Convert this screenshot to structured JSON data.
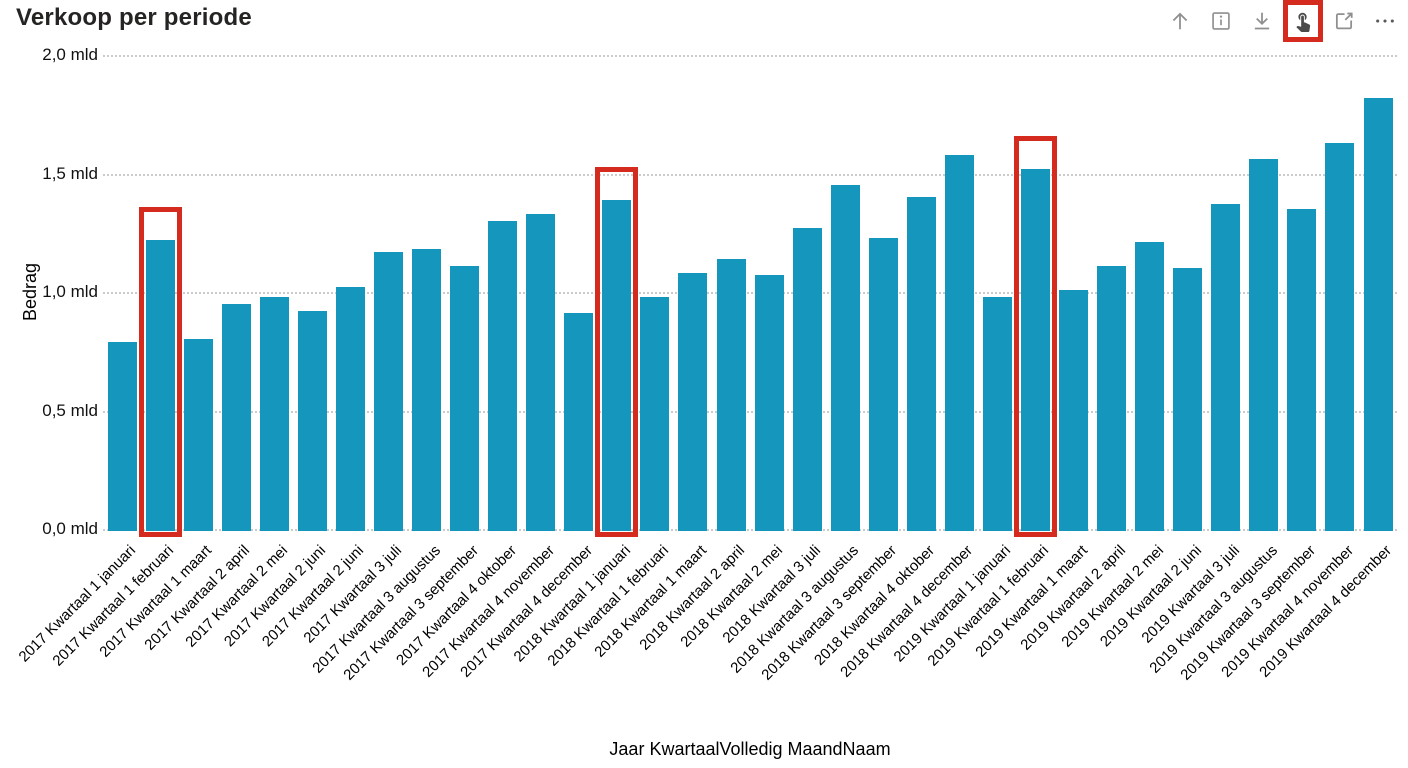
{
  "title": "Verkoop per periode",
  "toolbar": {
    "icons": [
      {
        "name": "drill-up"
      },
      {
        "name": "info"
      },
      {
        "name": "expand-next-level"
      },
      {
        "name": "drill-mode-toggle",
        "highlighted": true
      },
      {
        "name": "focus-mode"
      },
      {
        "name": "more-options"
      }
    ],
    "highlight_color": "#d52b1e"
  },
  "chart_data": {
    "type": "bar",
    "title": "Verkoop per periode",
    "xlabel": "Jaar KwartaalVolledig MaandNaam",
    "ylabel": "Bedrag",
    "ylim": [
      0,
      2.0
    ],
    "y_ticks": [
      {
        "value": 0.0,
        "label": "0,0 mld"
      },
      {
        "value": 0.5,
        "label": "0,5 mld"
      },
      {
        "value": 1.0,
        "label": "1,0 mld"
      },
      {
        "value": 1.5,
        "label": "1,5 mld"
      },
      {
        "value": 2.0,
        "label": "2,0 mld"
      }
    ],
    "grid": "dotted",
    "bar_color": "#1496bd",
    "annotation_color": "#d52b1e",
    "categories": [
      "2017 Kwartaal 1 januari",
      "2017 Kwartaal 1 februari",
      "2017 Kwartaal 1 maart",
      "2017 Kwartaal 2 april",
      "2017 Kwartaal 2 mei",
      "2017 Kwartaal 2 juni",
      "2017 Kwartaal 2 juni",
      "2017 Kwartaal 3 juli",
      "2017 Kwartaal 3 augustus",
      "2017 Kwartaal 3 september",
      "2017 Kwartaal 4 oktober",
      "2017 Kwartaal 4 november",
      "2017 Kwartaal 4 december",
      "2018 Kwartaal 1 januari",
      "2018 Kwartaal 1 februari",
      "2018 Kwartaal 1 maart",
      "2018 Kwartaal 2 april",
      "2018 Kwartaal 2 mei",
      "2018 Kwartaal 3 juli",
      "2018 Kwartaal 3 augustus",
      "2018 Kwartaal 3 september",
      "2018 Kwartaal 4 oktober",
      "2018 Kwartaal 4 december",
      "2019 Kwartaal 1 januari",
      "2019 Kwartaal 1 februari",
      "2019 Kwartaal 1 maart",
      "2019 Kwartaal 2 april",
      "2019 Kwartaal 2 mei",
      "2019 Kwartaal 2 juni",
      "2019 Kwartaal 3 juli",
      "2019 Kwartaal 3 augustus",
      "2019 Kwartaal 3 september",
      "2019 Kwartaal 4 november",
      "2019 Kwartaal 4 december"
    ],
    "values": [
      0.79,
      1.22,
      0.8,
      0.95,
      0.98,
      0.92,
      1.02,
      1.17,
      1.18,
      1.11,
      1.3,
      1.33,
      0.91,
      1.39,
      0.98,
      1.08,
      1.14,
      1.07,
      1.27,
      1.45,
      1.23,
      1.4,
      1.58,
      0.98,
      1.52,
      1.01,
      1.11,
      1.21,
      1.1,
      1.37,
      1.56,
      1.35,
      1.63,
      1.82
    ],
    "highlighted_indices": [
      1,
      13,
      24
    ],
    "highlighted_categories": [
      "2017 Kwartaal 1 februari",
      "2018 Kwartaal 1 januari",
      "2019 Kwartaal 1 februari"
    ]
  }
}
